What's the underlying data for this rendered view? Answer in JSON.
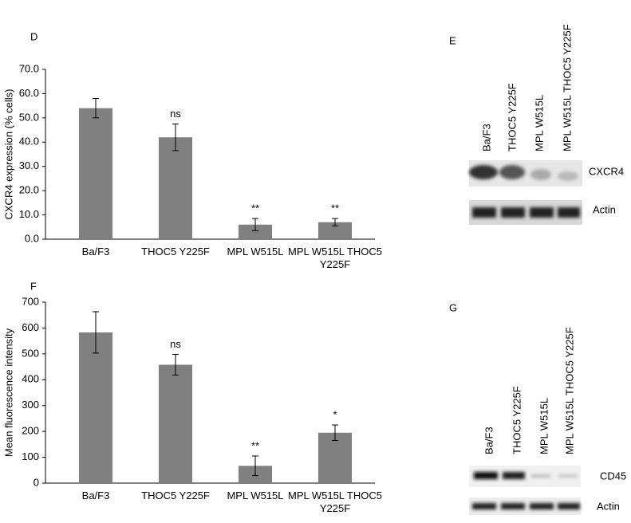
{
  "chart_data": [
    {
      "type": "bar",
      "panel_label": "D",
      "y_label": "CXCR4 expression (% cells)",
      "categories": [
        "Ba/F3",
        "THOC5 Y225F",
        "MPL W515L",
        "MPL W515L THOC5 Y225F"
      ],
      "values": [
        54,
        42,
        6,
        7
      ],
      "errors": [
        4,
        5.5,
        2.5,
        1.5
      ],
      "annotations": [
        null,
        "ns",
        "**",
        "**"
      ],
      "color": "#808080",
      "ylim": [
        0,
        70
      ],
      "yticks": [
        {
          "value": 0,
          "label": "0.0"
        },
        {
          "value": 10,
          "label": "10.0"
        },
        {
          "value": 20,
          "label": "20.0"
        },
        {
          "value": 30,
          "label": "30.0"
        },
        {
          "value": 40,
          "label": "40.0"
        },
        {
          "value": 50,
          "label": "50.0"
        },
        {
          "value": 60,
          "label": "60.0"
        },
        {
          "value": 70,
          "label": "70.0"
        }
      ]
    },
    {
      "type": "bar",
      "panel_label": "F",
      "y_label": "Mean fluorescence intensity",
      "categories": [
        "Ba/F3",
        "THOC5 Y225F",
        "MPL W515L",
        "MPL W515L THOC5 Y225F"
      ],
      "values": [
        583,
        458,
        67,
        195
      ],
      "errors": [
        80,
        40,
        38,
        30
      ],
      "annotations": [
        null,
        "ns",
        "**",
        "*"
      ],
      "color": "#808080",
      "ylim": [
        0,
        700
      ],
      "yticks": [
        0,
        100,
        200,
        300,
        400,
        500,
        600,
        700
      ]
    }
  ],
  "blots": [
    {
      "panel_label": "E",
      "lanes": [
        "Ba/F3",
        "THOC5 Y225F",
        "MPL W515L",
        "MPL W515L THOC5 Y225F"
      ],
      "bands": [
        "CXCR4",
        "Actin"
      ]
    },
    {
      "panel_label": "G",
      "lanes": [
        "Ba/F3",
        "THOC5 Y225F",
        "MPL W515L",
        "MPL W515L THOC5 Y225F"
      ],
      "bands": [
        "CD45",
        "Actin"
      ]
    }
  ]
}
